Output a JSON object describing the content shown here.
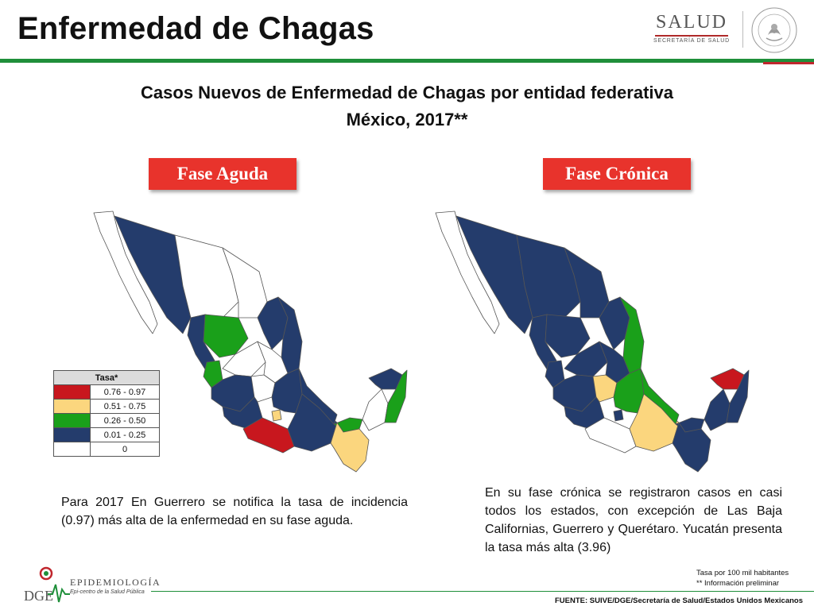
{
  "header": {
    "title": "Enfermedad de Chagas",
    "salud_logo": {
      "word": "SALUD",
      "subtitle": "SECRETARÍA DE SALUD"
    },
    "seal_text": "ESTADOS UNIDOS MEXICANOS",
    "accent_green": "#1f8f3a",
    "accent_red": "#c0262d"
  },
  "chart": {
    "title_line1": "Casos Nuevos de Enfermedad de Chagas por entidad federativa",
    "title_line2": "México, 2017**"
  },
  "phases": {
    "acute_label": "Fase Aguda",
    "chronic_label": "Fase Crónica",
    "button_color": "#e8332c"
  },
  "legend": {
    "header": "Tasa*",
    "bins": [
      {
        "range": "0.76  -  0.97",
        "color": "#c8171e"
      },
      {
        "range": "0.51  -  0.75",
        "color": "#fbd67e"
      },
      {
        "range": "0.26  -  0.50",
        "color": "#1aa01a"
      },
      {
        "range": "0.01  -  0.25",
        "color": "#243c6c"
      },
      {
        "range": "0",
        "color": "#ffffff"
      }
    ]
  },
  "maps": {
    "acute": {
      "highlighted_state": "Guerrero",
      "highlighted_rate": 0.97
    },
    "chronic": {
      "highlighted_state": "Yucatán",
      "highlighted_rate": 3.96
    }
  },
  "descriptions": {
    "acute": "Para 2017 En Guerrero se notifica la tasa de incidencia (0.97) más alta de la enfermedad en su fase aguda.",
    "chronic": "En su fase crónica se registraron casos en casi todos los estados, con excepción de Las Baja Californias, Guerrero y Querétaro. Yucatán presenta la tasa más alta (3.96)"
  },
  "notes": {
    "line1": "Tasa por 100 mil habitantes",
    "line2": "** Información preliminar"
  },
  "footer": {
    "source": "FUENTE: SUIVE/DGE/Secretaría de Salud/Estados Unidos Mexicanos",
    "epi_name": "EPIDEMIOLOGÍA",
    "epi_initials": "DGE",
    "epi_tagline": "Epi-centro de la Salud Pública"
  }
}
